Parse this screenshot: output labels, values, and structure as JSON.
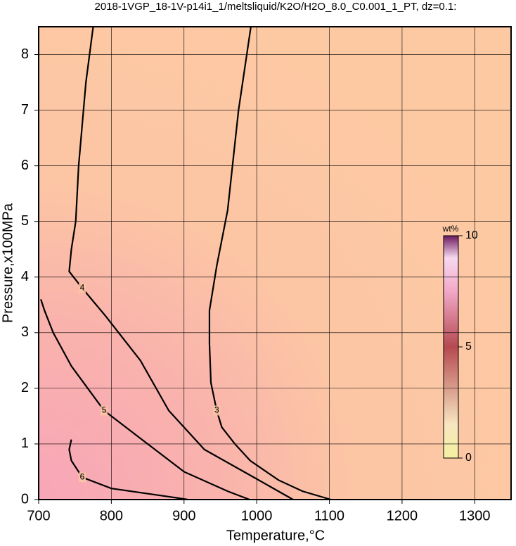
{
  "chart_data": {
    "type": "contour",
    "title": "2018-1VGP_18-1V-p14i1_1/meltsliquid/K2O/H2O_8.0_C0.001_1_PT, dz=0.1:",
    "xlabel": "Temperature,°C",
    "ylabel": "Pressure,x100MPa",
    "xlim": [
      700,
      1350
    ],
    "xticks": [
      700,
      800,
      900,
      1000,
      1100,
      1200,
      1300
    ],
    "ylim": [
      0,
      8.5
    ],
    "yticks": [
      0,
      1,
      2,
      3,
      4,
      5,
      6,
      7,
      8
    ],
    "grid": true,
    "contours": [
      {
        "level": 3,
        "x": [
          992,
          975,
          960,
          945,
          935,
          935,
          937,
          945,
          952,
          970,
          991,
          1030,
          1063,
          1102
        ],
        "y": [
          8.5,
          7.0,
          5.2,
          4.2,
          3.4,
          2.8,
          2.1,
          1.6,
          1.3,
          1.0,
          0.7,
          0.35,
          0.15,
          0
        ]
      },
      {
        "level": 4,
        "x": [
          775,
          765,
          755,
          751,
          745,
          742,
          760,
          792,
          840,
          879,
          928,
          996,
          1050
        ],
        "y": [
          8.5,
          7.5,
          6.0,
          5.0,
          4.5,
          4.1,
          3.8,
          3.3,
          2.5,
          1.6,
          0.9,
          0.4,
          0
        ]
      },
      {
        "level": 5,
        "x": [
          703,
          708,
          720,
          745,
          790,
          850,
          900,
          960,
          990
        ],
        "y": [
          3.6,
          3.4,
          3.0,
          2.4,
          1.6,
          1.0,
          0.5,
          0.15,
          0
        ]
      },
      {
        "level": 6,
        "x": [
          745,
          742,
          745,
          760,
          800,
          880,
          905
        ],
        "y": [
          1.08,
          0.9,
          0.7,
          0.4,
          0.2,
          0.05,
          0
        ]
      }
    ],
    "colorbar": {
      "label": "wt%",
      "lim": [
        0,
        10
      ],
      "ticks": [
        0,
        5,
        10
      ]
    }
  }
}
